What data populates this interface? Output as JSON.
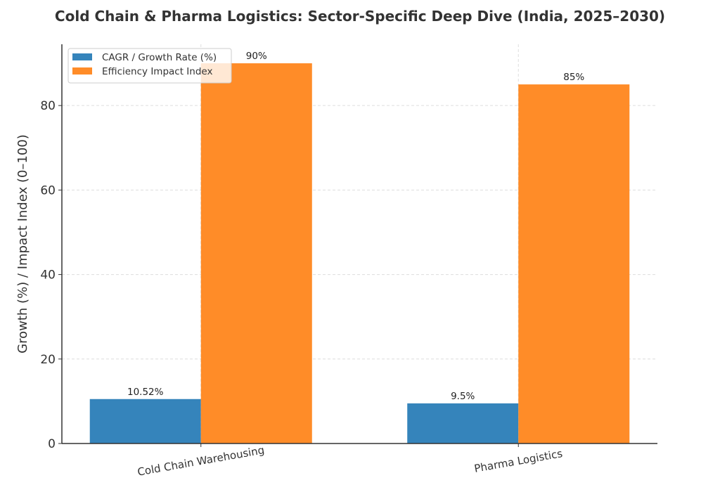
{
  "chart_data": {
    "type": "bar",
    "title": "Cold Chain & Pharma Logistics: Sector-Specific Deep Dive (India, 2025–2030)",
    "xlabel": "",
    "ylabel": "Growth (%) / Impact Index (0–100)",
    "categories": [
      "Cold Chain Warehousing",
      "Pharma Logistics"
    ],
    "series": [
      {
        "name": "CAGR / Growth Rate (%)",
        "values": [
          10.52,
          9.5
        ],
        "labels": [
          "10.52%",
          "9.5%"
        ],
        "color": "#3584bb"
      },
      {
        "name": "Efficiency Impact Index",
        "values": [
          90,
          85
        ],
        "labels": [
          "90%",
          "85%"
        ],
        "color": "#ff8c28"
      }
    ],
    "ylim": [
      0,
      94.5
    ],
    "yticks": [
      0,
      20,
      40,
      60,
      80
    ],
    "grid": true,
    "legend": "top-left"
  }
}
